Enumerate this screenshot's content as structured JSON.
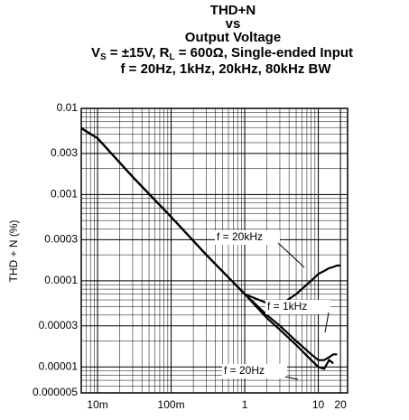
{
  "chart_data": {
    "type": "line",
    "title": [
      "THD+N",
      "vs",
      "Output Voltage"
    ],
    "subtitle": [
      "V",
      "S",
      " = ±15V, R",
      "L",
      " = 600Ω, Single-ended Input"
    ],
    "subtitle2": "f = 20Hz, 1kHz, 20kHz, 80kHz BW",
    "y_label": "THD + N (%)",
    "log_x": true,
    "log_y": true,
    "grid": true,
    "xlim": [
      0.006,
      25
    ],
    "ylim": [
      5e-06,
      0.01
    ],
    "xticks": [
      {
        "value": 0.01,
        "label": "10m"
      },
      {
        "value": 0.1,
        "label": "100m"
      },
      1,
      10,
      20
    ],
    "yticks": [
      0.01,
      0.003,
      0.001,
      0.0003,
      0.0001,
      3e-05,
      1e-05,
      5e-06
    ],
    "x": [
      0.006,
      0.01,
      0.03,
      0.1,
      0.3,
      1,
      2,
      3,
      5,
      8,
      10,
      12,
      14,
      16,
      18,
      20
    ],
    "series": [
      {
        "name": "f = 20kHz",
        "color": "#000000",
        "values": [
          0.0059,
          0.0045,
          0.0016,
          0.00055,
          0.0002,
          7e-05,
          5.5e-05,
          5.2e-05,
          7e-05,
          0.0001,
          0.00012,
          0.00013,
          0.00014,
          0.000145,
          0.00015,
          0.00015
        ]
      },
      {
        "name": "f = 1kHz",
        "color": "#000000",
        "values": [
          0.0059,
          0.0045,
          0.0016,
          0.00055,
          0.0002,
          7e-05,
          4e-05,
          3e-05,
          2e-05,
          1.4e-05,
          1.2e-05,
          1.2e-05,
          1.3e-05,
          1.4e-05,
          1.4e-05,
          null
        ]
      },
      {
        "name": "f = 20Hz",
        "color": "#000000",
        "values": [
          0.0059,
          0.0045,
          0.0016,
          0.00055,
          0.0002,
          7e-05,
          3.7e-05,
          2.7e-05,
          1.8e-05,
          1.2e-05,
          1e-05,
          9.5e-06,
          1.2e-05,
          1.1e-05,
          null,
          null
        ]
      }
    ]
  }
}
